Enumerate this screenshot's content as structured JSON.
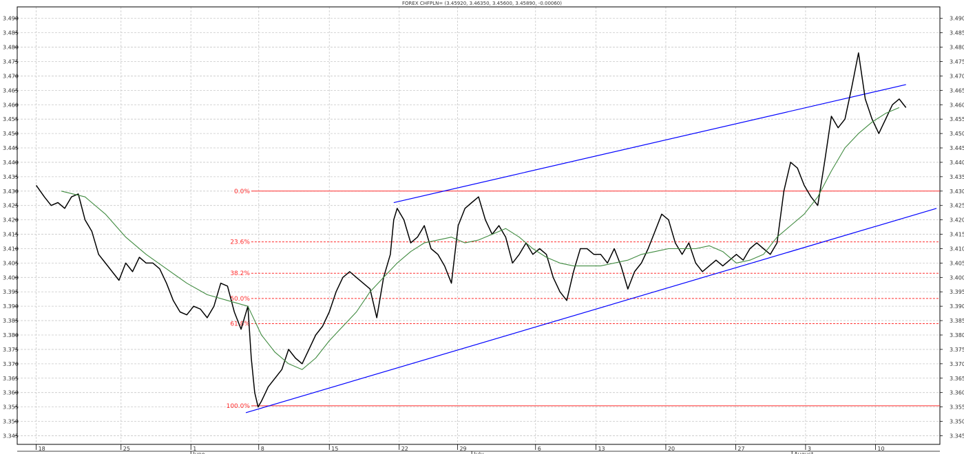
{
  "chart_data": {
    "type": "line",
    "title": "FOREX CHFPLN= (3.45920, 3.46350, 3.45600, 3.45890, -0.00060)",
    "ylim": [
      3.342,
      3.494
    ],
    "xlim": [
      0,
      1360
    ],
    "y_ticks": [
      "3.345",
      "3.350",
      "3.355",
      "3.360",
      "3.365",
      "3.370",
      "3.375",
      "3.380",
      "3.385",
      "3.390",
      "3.395",
      "3.400",
      "3.405",
      "3.410",
      "3.415",
      "3.420",
      "3.425",
      "3.430",
      "3.435",
      "3.440",
      "3.445",
      "3.450",
      "3.455",
      "3.460",
      "3.465",
      "3.470",
      "3.475",
      "3.480",
      "3.485",
      "3.490"
    ],
    "x_ticks": [
      {
        "label": "18",
        "x": 28
      },
      {
        "label": "25",
        "x": 153
      },
      {
        "label": "1",
        "x": 256
      },
      {
        "label": "8",
        "x": 356
      },
      {
        "label": "15",
        "x": 460
      },
      {
        "label": "22",
        "x": 563
      },
      {
        "label": "29",
        "x": 649
      },
      {
        "label": "6",
        "x": 764
      },
      {
        "label": "13",
        "x": 853
      },
      {
        "label": "20",
        "x": 956
      },
      {
        "label": "27",
        "x": 1059
      },
      {
        "label": "3",
        "x": 1162
      },
      {
        "label": "10",
        "x": 1265
      }
    ],
    "months": [
      {
        "label": "June",
        "x": 256
      },
      {
        "label": "July",
        "x": 670
      },
      {
        "label": "August",
        "x": 1142
      }
    ],
    "grid": true,
    "series": [
      {
        "role": "price",
        "color": "#000000",
        "x": [
          28,
          40,
          50,
          60,
          70,
          80,
          90,
          100,
          110,
          120,
          130,
          140,
          150,
          160,
          170,
          180,
          190,
          200,
          210,
          220,
          230,
          240,
          250,
          260,
          270,
          280,
          290,
          300,
          310,
          320,
          330,
          340,
          345,
          350,
          355,
          360,
          370,
          380,
          390,
          400,
          410,
          420,
          430,
          440,
          450,
          460,
          470,
          480,
          490,
          500,
          510,
          520,
          530,
          540,
          550,
          555,
          560,
          570,
          580,
          590,
          600,
          610,
          620,
          630,
          640,
          650,
          660,
          670,
          680,
          690,
          700,
          710,
          720,
          730,
          740,
          750,
          760,
          770,
          780,
          790,
          800,
          810,
          820,
          830,
          840,
          850,
          860,
          870,
          880,
          890,
          900,
          910,
          920,
          930,
          940,
          950,
          960,
          970,
          980,
          990,
          1000,
          1010,
          1020,
          1030,
          1040,
          1050,
          1060,
          1070,
          1080,
          1090,
          1100,
          1110,
          1120,
          1130,
          1140,
          1150,
          1160,
          1170,
          1180,
          1190,
          1200,
          1210,
          1220,
          1230,
          1240,
          1250,
          1260,
          1270,
          1280,
          1290,
          1300,
          1310
        ],
        "y": [
          3.432,
          3.428,
          3.425,
          3.426,
          3.424,
          3.428,
          3.429,
          3.42,
          3.416,
          3.408,
          3.405,
          3.402,
          3.399,
          3.405,
          3.402,
          3.407,
          3.405,
          3.405,
          3.403,
          3.398,
          3.392,
          3.388,
          3.387,
          3.39,
          3.389,
          3.386,
          3.39,
          3.398,
          3.397,
          3.388,
          3.382,
          3.39,
          3.372,
          3.36,
          3.355,
          3.357,
          3.362,
          3.365,
          3.368,
          3.375,
          3.372,
          3.37,
          3.375,
          3.38,
          3.383,
          3.388,
          3.395,
          3.4,
          3.402,
          3.4,
          3.398,
          3.396,
          3.386,
          3.4,
          3.408,
          3.42,
          3.424,
          3.42,
          3.412,
          3.414,
          3.418,
          3.41,
          3.408,
          3.404,
          3.398,
          3.418,
          3.424,
          3.426,
          3.428,
          3.42,
          3.415,
          3.418,
          3.414,
          3.405,
          3.408,
          3.412,
          3.408,
          3.41,
          3.408,
          3.4,
          3.395,
          3.392,
          3.402,
          3.41,
          3.41,
          3.408,
          3.408,
          3.405,
          3.41,
          3.404,
          3.396,
          3.402,
          3.405,
          3.41,
          3.416,
          3.422,
          3.42,
          3.412,
          3.408,
          3.412,
          3.405,
          3.402,
          3.404,
          3.406,
          3.404,
          3.406,
          3.408,
          3.406,
          3.41,
          3.412,
          3.41,
          3.408,
          3.412,
          3.43,
          3.44,
          3.438,
          3.432,
          3.428,
          3.425,
          3.44,
          3.456,
          3.452,
          3.455,
          3.466,
          3.478,
          3.462,
          3.455,
          3.45,
          3.455,
          3.46,
          3.462,
          3.459
        ]
      },
      {
        "role": "moving-average",
        "color": "#3f8a3f",
        "x": [
          65,
          100,
          130,
          160,
          190,
          220,
          250,
          280,
          310,
          340,
          360,
          380,
          400,
          420,
          440,
          460,
          480,
          500,
          520,
          540,
          560,
          580,
          600,
          620,
          640,
          660,
          680,
          700,
          720,
          740,
          760,
          780,
          800,
          820,
          840,
          860,
          880,
          900,
          920,
          940,
          960,
          980,
          1000,
          1020,
          1040,
          1060,
          1080,
          1100,
          1120,
          1140,
          1160,
          1180,
          1200,
          1220,
          1240,
          1260,
          1280,
          1300
        ],
        "y": [
          3.43,
          3.428,
          3.422,
          3.414,
          3.408,
          3.403,
          3.398,
          3.394,
          3.392,
          3.39,
          3.38,
          3.374,
          3.37,
          3.368,
          3.372,
          3.378,
          3.383,
          3.388,
          3.395,
          3.4,
          3.405,
          3.409,
          3.412,
          3.413,
          3.414,
          3.412,
          3.413,
          3.415,
          3.417,
          3.414,
          3.41,
          3.407,
          3.405,
          3.404,
          3.404,
          3.404,
          3.405,
          3.406,
          3.408,
          3.409,
          3.41,
          3.41,
          3.41,
          3.411,
          3.409,
          3.405,
          3.406,
          3.408,
          3.414,
          3.418,
          3.422,
          3.428,
          3.437,
          3.445,
          3.45,
          3.454,
          3.457,
          3.459
        ]
      }
    ],
    "trendlines": [
      {
        "color": "#0000ff",
        "x": [
          555,
          1310
        ],
        "y": [
          3.426,
          3.467
        ]
      },
      {
        "color": "#0000ff",
        "x": [
          337,
          1355
        ],
        "y": [
          3.353,
          3.424
        ]
      }
    ],
    "fibonacci": {
      "color": "#ff2a2a",
      "x_start": 345,
      "levels": [
        {
          "label": "0.0%",
          "value": 3.43,
          "style": "solid"
        },
        {
          "label": "23.6%",
          "value": 3.41236,
          "style": "dashed"
        },
        {
          "label": "38.2%",
          "value": 3.40146,
          "style": "dashed"
        },
        {
          "label": "50.0%",
          "value": 3.3927,
          "style": "dashed"
        },
        {
          "label": "61.8%",
          "value": 3.38394,
          "style": "dashed"
        },
        {
          "label": "100.0%",
          "value": 3.3554,
          "style": "solid"
        }
      ]
    }
  }
}
